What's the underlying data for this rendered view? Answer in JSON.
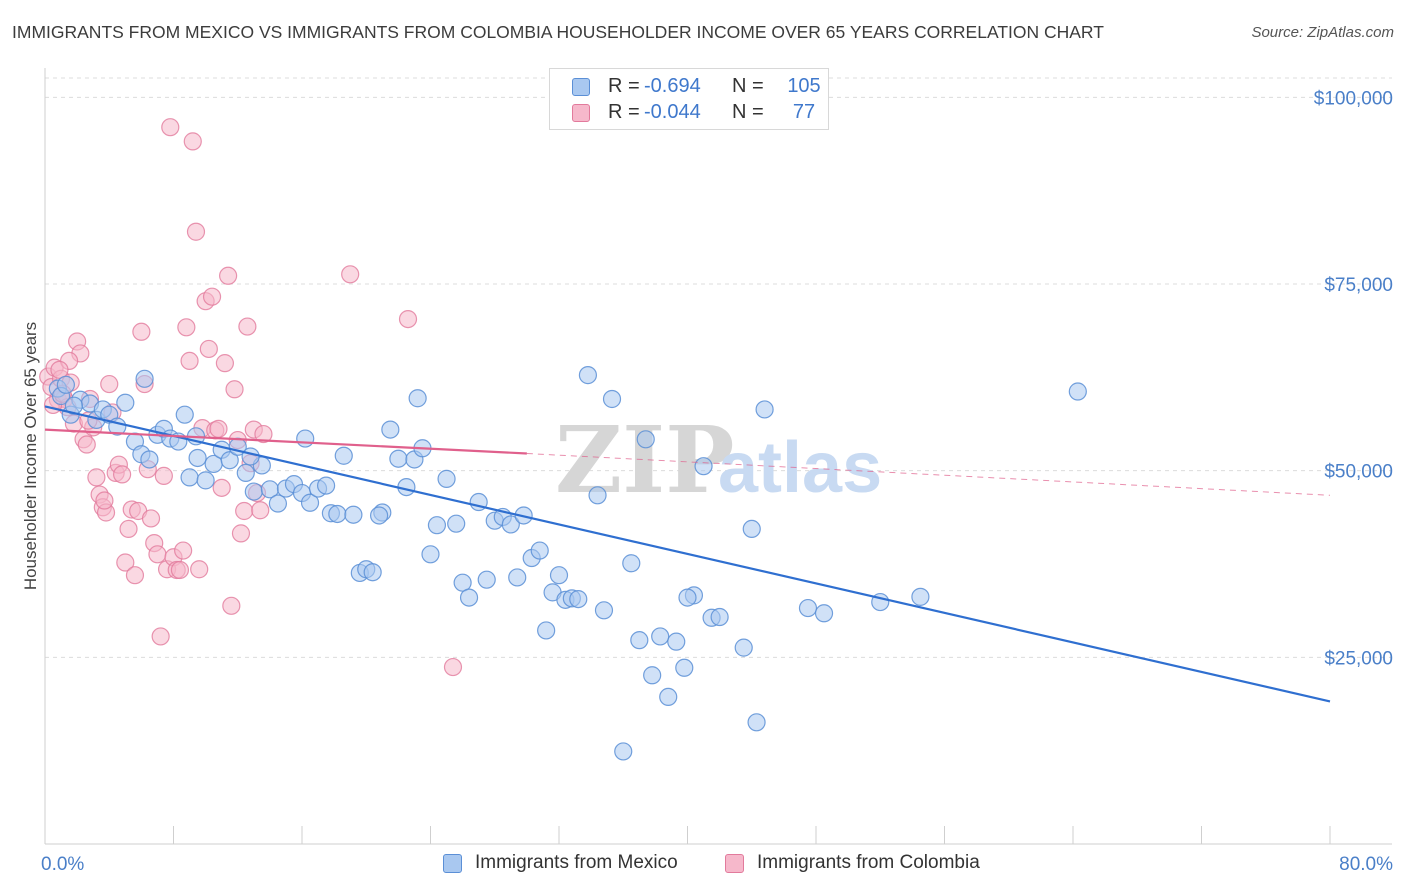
{
  "header": {
    "title": "IMMIGRANTS FROM MEXICO VS IMMIGRANTS FROM COLOMBIA HOUSEHOLDER INCOME OVER 65 YEARS CORRELATION CHART",
    "source": "Source: ZipAtlas.com"
  },
  "watermark": {
    "zip": "ZIP",
    "atlas": "atlas"
  },
  "legend_stats": [
    {
      "r_label": "R =",
      "r_value": "-0.694",
      "n_label": "N =",
      "n_value": "105"
    },
    {
      "r_label": "R =",
      "r_value": "-0.044",
      "n_label": "N =",
      "n_value": "77"
    }
  ],
  "colors": {
    "mexico_fill": "#a9c8f0",
    "mexico_stroke": "#5b8fd6",
    "mexico_line": "#2f6fd0",
    "colombia_fill": "#f6b8cb",
    "colombia_stroke": "#e27a9c",
    "colombia_line": "#e0608c",
    "axis_text": "#4a7fc8",
    "grid": "#dcdcdc"
  },
  "chart_data": {
    "type": "scatter",
    "xlabel": "",
    "ylabel": "Householder Income Over 65 years",
    "xlim": [
      0,
      80
    ],
    "ylim": [
      0,
      105000
    ],
    "x_tick_labels": [
      "0.0%",
      "80.0%"
    ],
    "y_ticks": [
      25000,
      50000,
      75000,
      100000
    ],
    "y_tick_labels": [
      "$25,000",
      "$50,000",
      "$75,000",
      "$100,000"
    ],
    "grid": true,
    "legend_position": "bottom",
    "series": [
      {
        "name": "Immigrants from Mexico",
        "trend": {
          "x": [
            0,
            80
          ],
          "y": [
            58600,
            19100
          ]
        },
        "points": [
          [
            0.8,
            61000
          ],
          [
            1.0,
            60000
          ],
          [
            1.3,
            61500
          ],
          [
            1.6,
            57500
          ],
          [
            2.2,
            59500
          ],
          [
            2.8,
            59000
          ],
          [
            3.2,
            56800
          ],
          [
            3.6,
            58200
          ],
          [
            4.0,
            57500
          ],
          [
            4.5,
            55900
          ],
          [
            5.0,
            59100
          ],
          [
            5.6,
            53900
          ],
          [
            6.0,
            52200
          ],
          [
            6.5,
            51500
          ],
          [
            7.0,
            54800
          ],
          [
            7.4,
            55600
          ],
          [
            7.8,
            54300
          ],
          [
            8.3,
            53900
          ],
          [
            8.7,
            57500
          ],
          [
            9.0,
            49100
          ],
          [
            9.5,
            51700
          ],
          [
            10.0,
            48700
          ],
          [
            10.5,
            50900
          ],
          [
            11.0,
            52800
          ],
          [
            11.5,
            51400
          ],
          [
            12.0,
            53200
          ],
          [
            12.5,
            49700
          ],
          [
            13.0,
            47200
          ],
          [
            13.5,
            50700
          ],
          [
            14.0,
            47500
          ],
          [
            14.5,
            45600
          ],
          [
            15.0,
            47600
          ],
          [
            15.5,
            48200
          ],
          [
            16.0,
            47000
          ],
          [
            16.5,
            45700
          ],
          [
            17.0,
            47600
          ],
          [
            17.5,
            48000
          ],
          [
            17.8,
            44300
          ],
          [
            18.2,
            44200
          ],
          [
            18.6,
            52000
          ],
          [
            19.2,
            44100
          ],
          [
            19.6,
            36300
          ],
          [
            20.0,
            36800
          ],
          [
            20.4,
            36400
          ],
          [
            21.0,
            44400
          ],
          [
            21.5,
            55500
          ],
          [
            22.0,
            51600
          ],
          [
            22.5,
            47800
          ],
          [
            23.0,
            51500
          ],
          [
            23.5,
            53000
          ],
          [
            24.0,
            38800
          ],
          [
            24.4,
            42700
          ],
          [
            25.0,
            48900
          ],
          [
            25.6,
            42900
          ],
          [
            26.0,
            35000
          ],
          [
            26.4,
            33000
          ],
          [
            27.0,
            45800
          ],
          [
            27.5,
            35400
          ],
          [
            28.0,
            43300
          ],
          [
            28.5,
            43800
          ],
          [
            29.0,
            42800
          ],
          [
            29.4,
            35700
          ],
          [
            29.8,
            44000
          ],
          [
            30.3,
            38300
          ],
          [
            30.8,
            39300
          ],
          [
            31.2,
            28600
          ],
          [
            31.6,
            33700
          ],
          [
            32.0,
            36000
          ],
          [
            32.4,
            32700
          ],
          [
            32.8,
            32900
          ],
          [
            33.2,
            32800
          ],
          [
            33.8,
            62800
          ],
          [
            34.4,
            46700
          ],
          [
            34.8,
            31300
          ],
          [
            35.3,
            59600
          ],
          [
            36.0,
            12400
          ],
          [
            36.5,
            37600
          ],
          [
            37.0,
            27300
          ],
          [
            37.4,
            54200
          ],
          [
            37.8,
            22600
          ],
          [
            38.3,
            27800
          ],
          [
            38.8,
            19700
          ],
          [
            39.3,
            27100
          ],
          [
            39.8,
            23600
          ],
          [
            40.4,
            33300
          ],
          [
            41.0,
            50600
          ],
          [
            41.5,
            30300
          ],
          [
            42.0,
            30400
          ],
          [
            43.5,
            26300
          ],
          [
            44.0,
            42200
          ],
          [
            44.3,
            16300
          ],
          [
            44.8,
            58200
          ],
          [
            47.5,
            31600
          ],
          [
            48.5,
            30900
          ],
          [
            52.0,
            32400
          ],
          [
            54.5,
            33100
          ],
          [
            64.3,
            60600
          ],
          [
            6.2,
            62300
          ],
          [
            1.8,
            58700
          ],
          [
            23.2,
            59700
          ],
          [
            16.2,
            54300
          ],
          [
            12.8,
            51900
          ],
          [
            9.4,
            54600
          ],
          [
            20.8,
            44000
          ],
          [
            40.0,
            33000
          ]
        ]
      },
      {
        "name": "Immigrants from Colombia",
        "trend": {
          "x": [
            0,
            30
          ],
          "y": [
            55500,
            52300
          ]
        },
        "trend_extension": {
          "x": [
            30,
            80
          ],
          "y": [
            52300,
            46700
          ]
        },
        "points": [
          [
            0.2,
            62600
          ],
          [
            0.4,
            61200
          ],
          [
            0.6,
            63800
          ],
          [
            0.8,
            59500
          ],
          [
            1.0,
            62300
          ],
          [
            1.2,
            59600
          ],
          [
            1.4,
            58500
          ],
          [
            1.6,
            61800
          ],
          [
            1.8,
            56300
          ],
          [
            2.0,
            67300
          ],
          [
            2.2,
            65700
          ],
          [
            2.4,
            54200
          ],
          [
            2.6,
            53500
          ],
          [
            2.8,
            59600
          ],
          [
            3.0,
            55800
          ],
          [
            3.2,
            49100
          ],
          [
            3.4,
            46800
          ],
          [
            3.6,
            45100
          ],
          [
            3.8,
            44400
          ],
          [
            4.0,
            61600
          ],
          [
            4.2,
            57800
          ],
          [
            4.4,
            49700
          ],
          [
            4.6,
            50800
          ],
          [
            4.8,
            49500
          ],
          [
            5.0,
            37700
          ],
          [
            5.2,
            42200
          ],
          [
            5.4,
            44800
          ],
          [
            5.6,
            36000
          ],
          [
            5.8,
            44600
          ],
          [
            6.0,
            68600
          ],
          [
            6.2,
            61600
          ],
          [
            6.4,
            50200
          ],
          [
            6.6,
            43600
          ],
          [
            6.8,
            40300
          ],
          [
            7.0,
            38800
          ],
          [
            7.2,
            27800
          ],
          [
            7.4,
            49300
          ],
          [
            7.6,
            36800
          ],
          [
            7.8,
            96000
          ],
          [
            8.0,
            38400
          ],
          [
            8.2,
            36700
          ],
          [
            8.4,
            36700
          ],
          [
            8.6,
            39300
          ],
          [
            8.8,
            69200
          ],
          [
            9.0,
            64700
          ],
          [
            9.2,
            94100
          ],
          [
            9.4,
            82000
          ],
          [
            9.6,
            36800
          ],
          [
            9.8,
            55700
          ],
          [
            10.0,
            72700
          ],
          [
            10.2,
            66300
          ],
          [
            10.4,
            73300
          ],
          [
            10.6,
            55400
          ],
          [
            10.8,
            55600
          ],
          [
            11.0,
            47700
          ],
          [
            11.2,
            64400
          ],
          [
            11.4,
            76100
          ],
          [
            11.6,
            31900
          ],
          [
            11.8,
            60900
          ],
          [
            12.0,
            54100
          ],
          [
            12.2,
            41600
          ],
          [
            12.4,
            44600
          ],
          [
            12.6,
            69300
          ],
          [
            12.8,
            51000
          ],
          [
            13.0,
            55500
          ],
          [
            13.2,
            47000
          ],
          [
            13.4,
            44700
          ],
          [
            19.0,
            76300
          ],
          [
            22.6,
            70300
          ],
          [
            25.4,
            23700
          ],
          [
            0.5,
            58800
          ],
          [
            1.1,
            60300
          ],
          [
            2.7,
            56700
          ],
          [
            3.7,
            46000
          ],
          [
            1.5,
            64700
          ],
          [
            0.9,
            63500
          ],
          [
            13.6,
            54900
          ]
        ]
      }
    ]
  }
}
